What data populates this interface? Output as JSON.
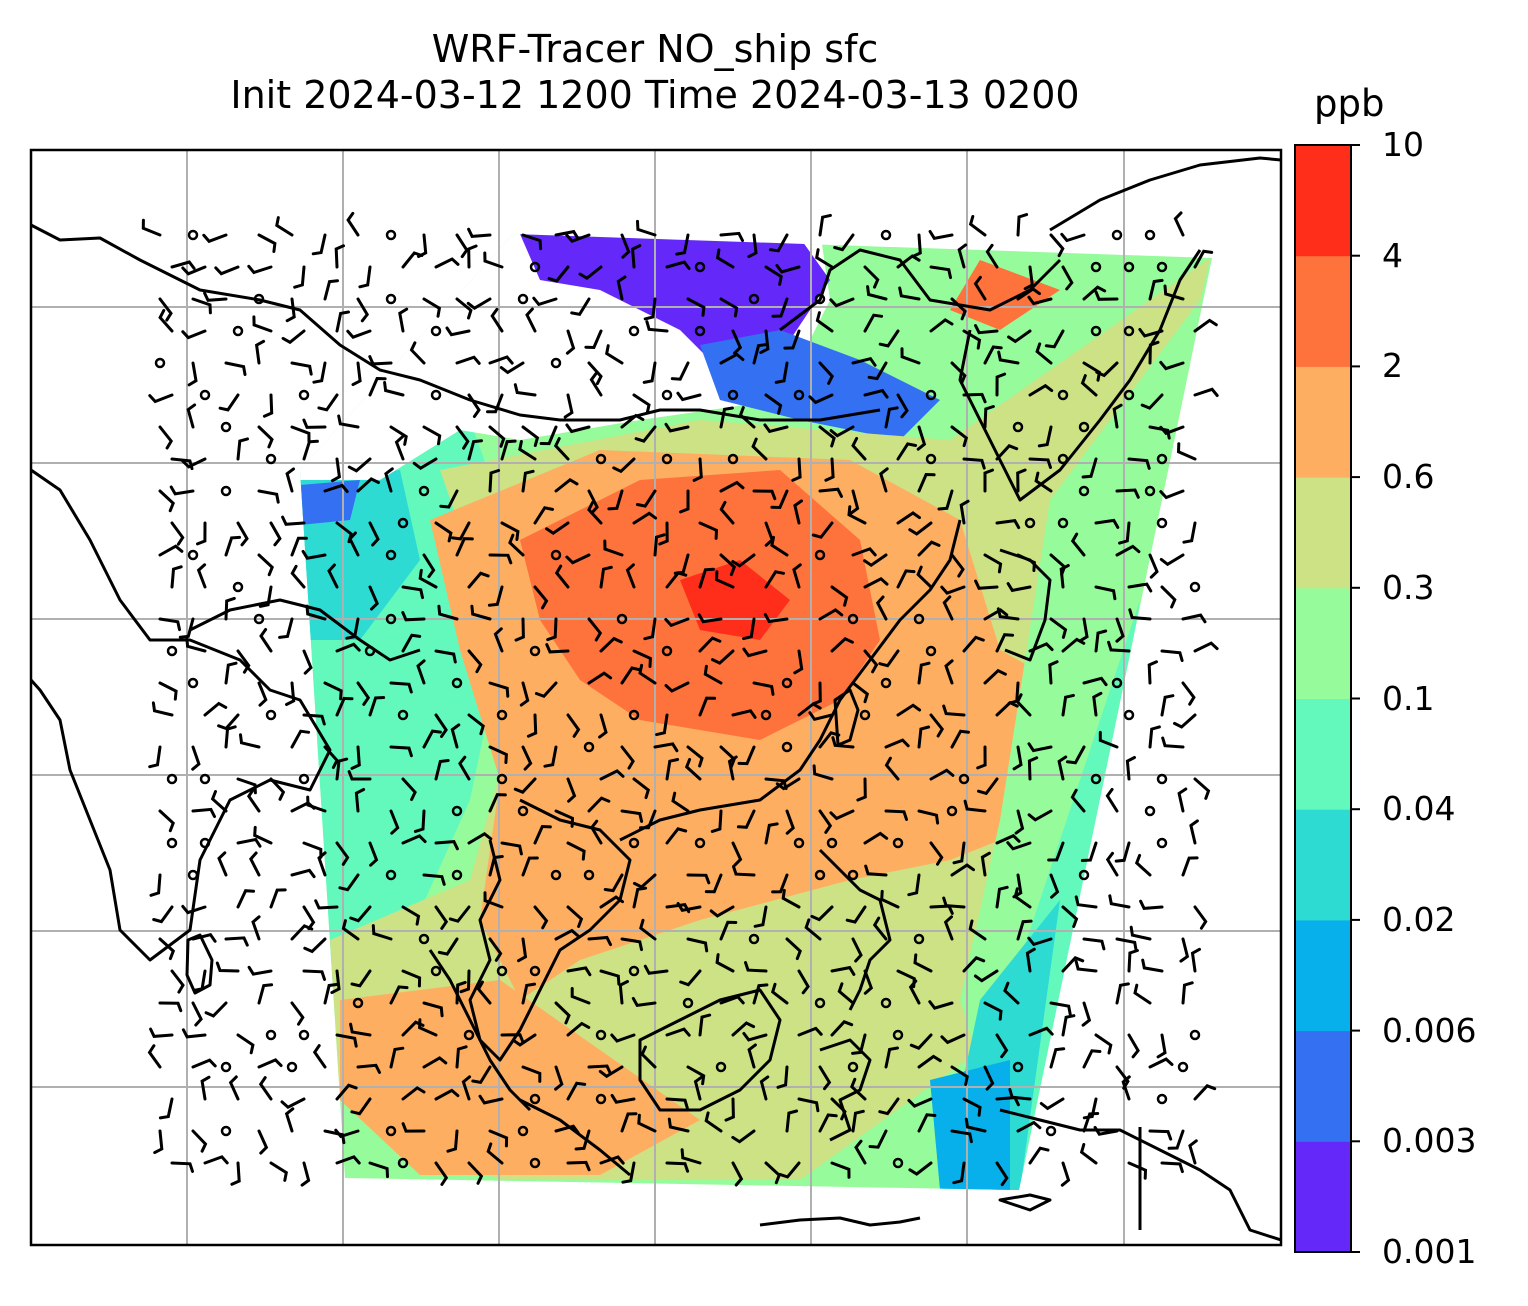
{
  "title": {
    "line1": "WRF-Tracer NO_ship sfc",
    "line2": "Init 2024-03-12 1200 Time 2024-03-13 0200"
  },
  "colorbar": {
    "unit": "ppb",
    "levels": [
      "0.001",
      "0.003",
      "0.006",
      "0.02",
      "0.04",
      "0.1",
      "0.3",
      "0.6",
      "2",
      "4",
      "10"
    ],
    "colors": [
      "#6428f8",
      "#3370f2",
      "#07b0ea",
      "#2ddbd3",
      "#63f9bd",
      "#96fb9b",
      "#cde185",
      "#fdae61",
      "#fe723c",
      "#ff2e1a"
    ]
  },
  "map": {
    "background": "#ffffff",
    "grid_color": "#b0b0b0",
    "coastline_color": "#000000",
    "barb_color": "#000000"
  }
}
